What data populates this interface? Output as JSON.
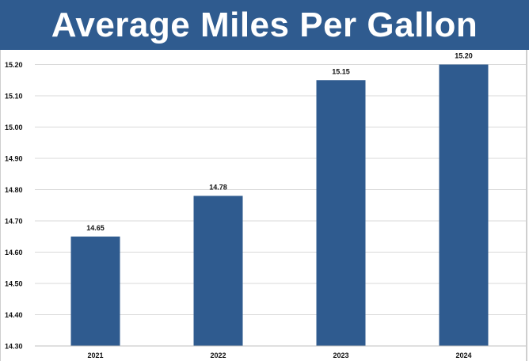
{
  "chart_data": {
    "type": "bar",
    "title": "Average Miles Per Gallon",
    "categories": [
      "2021",
      "2022",
      "2023",
      "2024"
    ],
    "values": [
      14.65,
      14.78,
      15.15,
      15.2
    ],
    "data_labels": [
      "14.65",
      "14.78",
      "15.15",
      "15.20"
    ],
    "ylim": [
      14.3,
      15.25
    ],
    "yticks": [
      "14.30",
      "14.40",
      "14.50",
      "14.60",
      "14.70",
      "14.80",
      "14.90",
      "15.00",
      "15.10",
      "15.20"
    ],
    "xlabel": "",
    "ylabel": "",
    "grid": true,
    "legend": "none",
    "bar_color": "#2f5b8f",
    "title_bg_color": "#2f5b8f"
  }
}
